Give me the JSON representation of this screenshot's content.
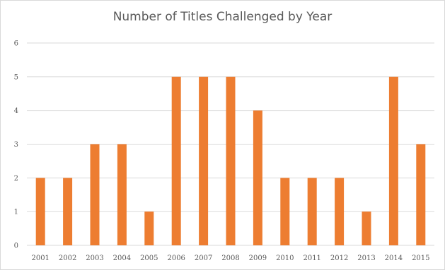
{
  "chart_data": {
    "type": "bar",
    "title": "Number of Titles Challenged by Year",
    "xlabel": "",
    "ylabel": "",
    "categories": [
      "2001",
      "2002",
      "2003",
      "2004",
      "2005",
      "2006",
      "2007",
      "2008",
      "2009",
      "2010",
      "2011",
      "2012",
      "2013",
      "2014",
      "2015"
    ],
    "values": [
      2,
      2,
      3,
      3,
      1,
      5,
      5,
      5,
      4,
      2,
      2,
      2,
      1,
      5,
      3
    ],
    "ylim": [
      0,
      6
    ],
    "yticks": [
      0,
      1,
      2,
      3,
      4,
      5,
      6
    ],
    "grid": "horizontal",
    "legend": "none",
    "colors": {
      "bar": "#ed7d31",
      "grid": "#d9d9d9",
      "text": "#595959"
    }
  }
}
